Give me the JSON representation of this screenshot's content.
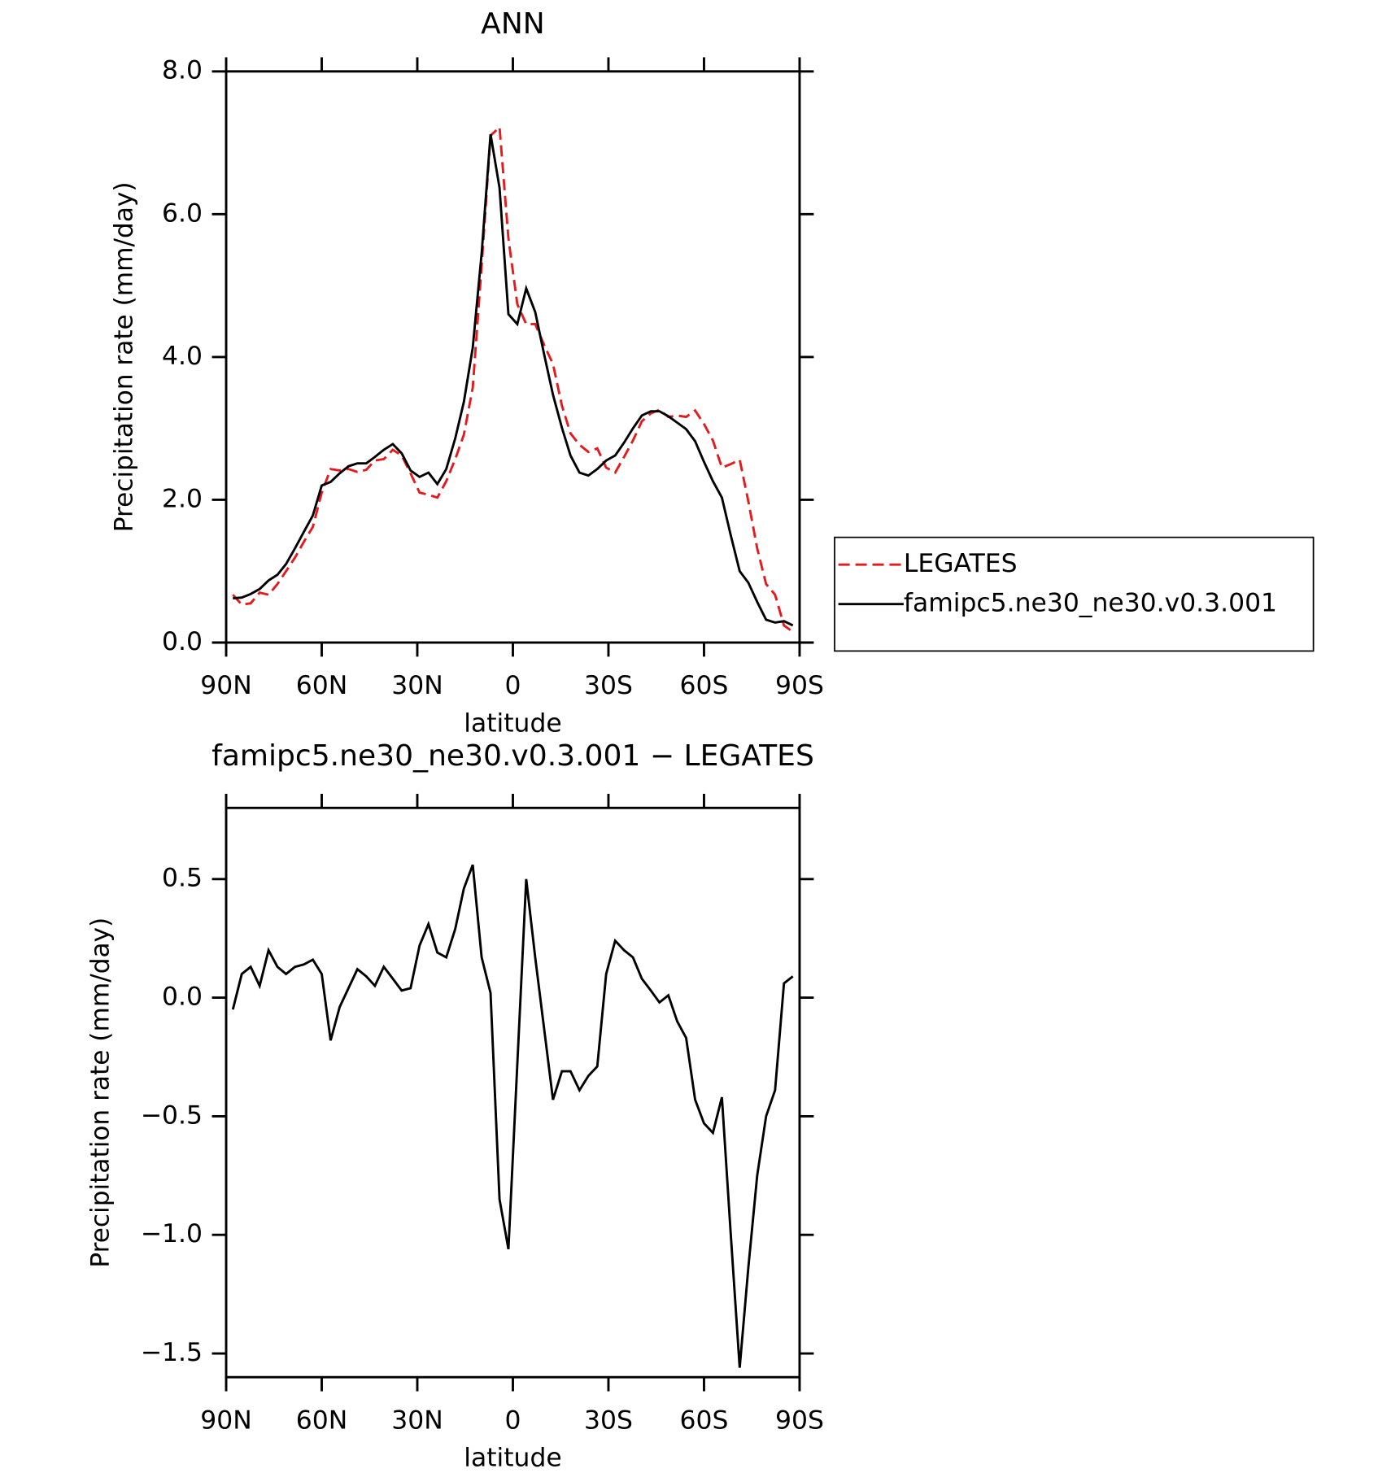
{
  "chart_data": [
    {
      "type": "line",
      "title": "ANN",
      "xlabel": "latitude",
      "ylabel": "Precipitation rate (mm/day)",
      "x": [
        87.9,
        85.1,
        82.3,
        79.5,
        76.7,
        73.9,
        71.2,
        68.4,
        65.6,
        62.8,
        60.0,
        57.2,
        54.4,
        51.6,
        48.8,
        46.0,
        43.3,
        40.5,
        37.7,
        34.9,
        32.1,
        29.3,
        26.5,
        23.7,
        20.9,
        18.1,
        15.4,
        12.6,
        9.8,
        7.0,
        4.2,
        1.4,
        -1.4,
        -4.2,
        -7.0,
        -9.8,
        -12.6,
        -15.4,
        -18.1,
        -20.9,
        -23.7,
        -26.5,
        -29.3,
        -32.1,
        -34.9,
        -37.7,
        -40.5,
        -43.3,
        -46.0,
        -48.8,
        -51.6,
        -54.4,
        -57.2,
        -60.0,
        -62.8,
        -65.6,
        -68.4,
        -71.2,
        -73.9,
        -76.7,
        -79.5,
        -82.3,
        -85.1,
        -87.9
      ],
      "series": [
        {
          "name": "LEGATES",
          "color": "#e41a1c",
          "linestyle": "dashed",
          "values": [
            0.67,
            0.53,
            0.55,
            0.7,
            0.67,
            0.82,
            1.0,
            1.19,
            1.41,
            1.62,
            2.1,
            2.43,
            2.41,
            2.43,
            2.39,
            2.42,
            2.55,
            2.57,
            2.7,
            2.62,
            2.37,
            2.1,
            2.07,
            2.03,
            2.26,
            2.57,
            2.91,
            3.57,
            5.28,
            7.1,
            7.22,
            5.66,
            4.74,
            4.46,
            4.46,
            4.17,
            3.9,
            3.32,
            2.93,
            2.77,
            2.67,
            2.72,
            2.45,
            2.38,
            2.6,
            2.83,
            3.1,
            3.21,
            3.26,
            3.16,
            3.18,
            3.16,
            3.25,
            3.06,
            2.83,
            2.45,
            2.5,
            2.56,
            1.98,
            1.32,
            0.82,
            0.67,
            0.24,
            0.15
          ]
        },
        {
          "name": "famipc5.ne30_ne30.v0.3.001",
          "color": "#000000",
          "linestyle": "solid",
          "values": [
            0.62,
            0.63,
            0.68,
            0.75,
            0.87,
            0.95,
            1.1,
            1.32,
            1.55,
            1.78,
            2.2,
            2.25,
            2.37,
            2.47,
            2.51,
            2.51,
            2.6,
            2.7,
            2.78,
            2.65,
            2.41,
            2.32,
            2.38,
            2.22,
            2.43,
            2.86,
            3.37,
            4.13,
            5.45,
            7.12,
            6.37,
            4.6,
            4.46,
            4.96,
            4.63,
            4.04,
            3.47,
            3.01,
            2.62,
            2.38,
            2.34,
            2.43,
            2.55,
            2.62,
            2.8,
            3.0,
            3.18,
            3.24,
            3.24,
            3.17,
            3.08,
            2.99,
            2.82,
            2.53,
            2.26,
            2.03,
            1.5,
            1.0,
            0.84,
            0.57,
            0.32,
            0.28,
            0.3,
            0.24
          ]
        }
      ],
      "xlim": [
        90,
        -90
      ],
      "xticks": [
        {
          "value": 90,
          "label": "90N"
        },
        {
          "value": 60,
          "label": "60N"
        },
        {
          "value": 30,
          "label": "30N"
        },
        0,
        {
          "value": -30,
          "label": "30S"
        },
        {
          "value": -60,
          "label": "60S"
        },
        {
          "value": -90,
          "label": "90S"
        }
      ],
      "ylim": [
        0,
        8
      ],
      "yticks": [
        {
          "value": 0,
          "label": "0.0"
        },
        {
          "value": 2,
          "label": "2.0"
        },
        {
          "value": 4,
          "label": "4.0"
        },
        {
          "value": 6,
          "label": "6.0"
        },
        {
          "value": 8,
          "label": "8.0"
        }
      ],
      "legend": "right"
    },
    {
      "type": "line",
      "title": "famipc5.ne30_ne30.v0.3.001 − LEGATES",
      "xlabel": "latitude",
      "ylabel": "Precipitation rate (mm/day)",
      "x": [
        87.9,
        85.1,
        82.3,
        79.5,
        76.7,
        73.9,
        71.2,
        68.4,
        65.6,
        62.8,
        60.0,
        57.2,
        54.4,
        51.6,
        48.8,
        46.0,
        43.3,
        40.5,
        37.7,
        34.9,
        32.1,
        29.3,
        26.5,
        23.7,
        20.9,
        18.1,
        15.4,
        12.6,
        9.8,
        7.0,
        4.2,
        1.4,
        -1.4,
        -4.2,
        -7.0,
        -9.8,
        -12.6,
        -15.4,
        -18.1,
        -20.9,
        -23.7,
        -26.5,
        -29.3,
        -32.1,
        -34.9,
        -37.7,
        -40.5,
        -43.3,
        -46.0,
        -48.8,
        -51.6,
        -54.4,
        -57.2,
        -60.0,
        -62.8,
        -65.6,
        -68.4,
        -71.2,
        -73.9,
        -76.7,
        -79.5,
        -82.3,
        -85.1,
        -87.9
      ],
      "color": "#000000",
      "values": [
        -0.05,
        0.1,
        0.13,
        0.05,
        0.2,
        0.13,
        0.1,
        0.13,
        0.14,
        0.16,
        0.1,
        -0.18,
        -0.04,
        0.04,
        0.12,
        0.09,
        0.05,
        0.13,
        0.08,
        0.03,
        0.04,
        0.22,
        0.31,
        0.19,
        0.17,
        0.29,
        0.46,
        0.56,
        0.17,
        0.02,
        -0.85,
        -1.06,
        -0.28,
        0.5,
        0.17,
        -0.13,
        -0.43,
        -0.31,
        -0.31,
        -0.39,
        -0.33,
        -0.29,
        0.1,
        0.24,
        0.2,
        0.17,
        0.08,
        0.03,
        -0.02,
        0.01,
        -0.1,
        -0.17,
        -0.43,
        -0.53,
        -0.57,
        -0.42,
        -1.0,
        -1.56,
        -1.14,
        -0.75,
        -0.5,
        -0.39,
        0.06,
        0.09
      ],
      "xlim": [
        90,
        -90
      ],
      "xticks": [
        {
          "value": 90,
          "label": "90N"
        },
        {
          "value": 60,
          "label": "60N"
        },
        {
          "value": 30,
          "label": "30N"
        },
        0,
        {
          "value": -30,
          "label": "30S"
        },
        {
          "value": -60,
          "label": "60S"
        },
        {
          "value": -90,
          "label": "90S"
        }
      ],
      "ylim": [
        -1.6,
        0.8
      ],
      "yticks": [
        {
          "value": -1.5,
          "label": "−1.5"
        },
        {
          "value": -1.0,
          "label": "−1.0"
        },
        {
          "value": -0.5,
          "label": "−0.5"
        },
        {
          "value": 0,
          "label": "0.0"
        },
        0.5
      ]
    }
  ]
}
